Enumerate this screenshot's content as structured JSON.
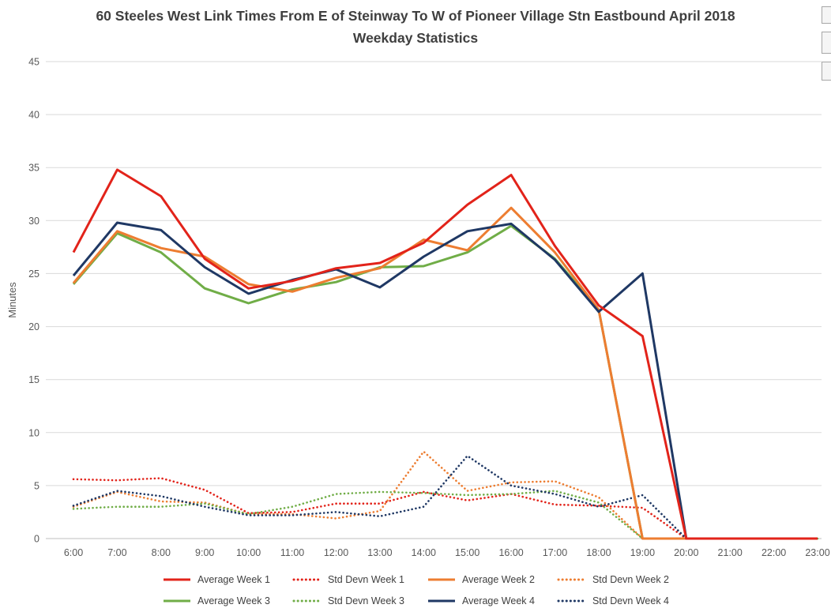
{
  "chart_data": {
    "type": "line",
    "title": "60 Steeles West Link Times From E of Steinway To W of Pioneer Village Stn Eastbound April 2018 Weekday Statistics",
    "xlabel": "",
    "ylabel": "Minutes",
    "ylim": [
      0,
      45
    ],
    "ytick_step": 5,
    "grid": true,
    "legend_position": "bottom",
    "colors": {
      "grid": "#d9d9d9",
      "axis": "#bfbfbf",
      "tick_text": "#595959",
      "title_text": "#3f3f3f"
    },
    "categories": [
      "6:00",
      "7:00",
      "8:00",
      "9:00",
      "10:00",
      "11:00",
      "12:00",
      "13:00",
      "14:00",
      "15:00",
      "16:00",
      "17:00",
      "18:00",
      "19:00",
      "20:00",
      "21:00",
      "22:00",
      "23:00"
    ],
    "series": [
      {
        "name": "Average Week 1",
        "color": "#e2231a",
        "style": "solid",
        "values": [
          27.0,
          34.8,
          32.3,
          26.4,
          23.6,
          24.3,
          25.5,
          26.0,
          27.9,
          31.5,
          34.3,
          27.6,
          22.0,
          19.1,
          0,
          0,
          0,
          0
        ]
      },
      {
        "name": "Std Devn Week 1",
        "color": "#e2231a",
        "style": "dotted",
        "values": [
          5.6,
          5.5,
          5.7,
          4.6,
          2.4,
          2.5,
          3.3,
          3.3,
          4.4,
          3.6,
          4.2,
          3.2,
          3.1,
          2.9,
          0,
          0,
          0,
          0
        ]
      },
      {
        "name": "Average Week 2",
        "color": "#ed7d31",
        "style": "solid",
        "values": [
          24.1,
          29.0,
          27.4,
          26.6,
          24.0,
          23.3,
          24.6,
          25.5,
          28.2,
          27.2,
          31.2,
          27.0,
          21.6,
          0,
          0,
          0,
          0,
          0
        ]
      },
      {
        "name": "Std Devn Week 2",
        "color": "#ed7d31",
        "style": "dotted",
        "values": [
          3.0,
          4.4,
          3.5,
          3.4,
          2.3,
          2.3,
          1.9,
          2.6,
          8.2,
          4.5,
          5.3,
          5.4,
          3.9,
          0,
          0,
          0,
          0,
          0
        ]
      },
      {
        "name": "Average Week 3",
        "color": "#70ad47",
        "style": "solid",
        "values": [
          24.0,
          28.8,
          27.0,
          23.6,
          22.2,
          23.5,
          24.2,
          25.6,
          25.7,
          27.0,
          29.5,
          26.4,
          21.6,
          0,
          0,
          0,
          0,
          0
        ]
      },
      {
        "name": "Std Devn Week 3",
        "color": "#70ad47",
        "style": "dotted",
        "values": [
          2.8,
          3.0,
          3.0,
          3.3,
          2.3,
          3.0,
          4.2,
          4.4,
          4.3,
          4.1,
          4.2,
          4.5,
          3.4,
          0,
          0,
          0,
          0,
          0
        ]
      },
      {
        "name": "Average Week 4",
        "color": "#1f3864",
        "style": "solid",
        "values": [
          24.8,
          29.8,
          29.1,
          25.6,
          23.1,
          24.4,
          25.4,
          23.7,
          26.6,
          29.0,
          29.7,
          26.3,
          21.4,
          25.0,
          0,
          0,
          0,
          0
        ]
      },
      {
        "name": "Std Devn Week 4",
        "color": "#1f3864",
        "style": "dotted",
        "values": [
          3.1,
          4.5,
          4.0,
          3.0,
          2.2,
          2.2,
          2.5,
          2.1,
          3.0,
          7.8,
          5.0,
          4.2,
          3.0,
          4.1,
          0,
          0,
          0,
          0
        ]
      }
    ],
    "icons": {
      "corner_buttons": [
        "cropped-button-1",
        "cropped-button-2",
        "cropped-button-3"
      ]
    }
  }
}
